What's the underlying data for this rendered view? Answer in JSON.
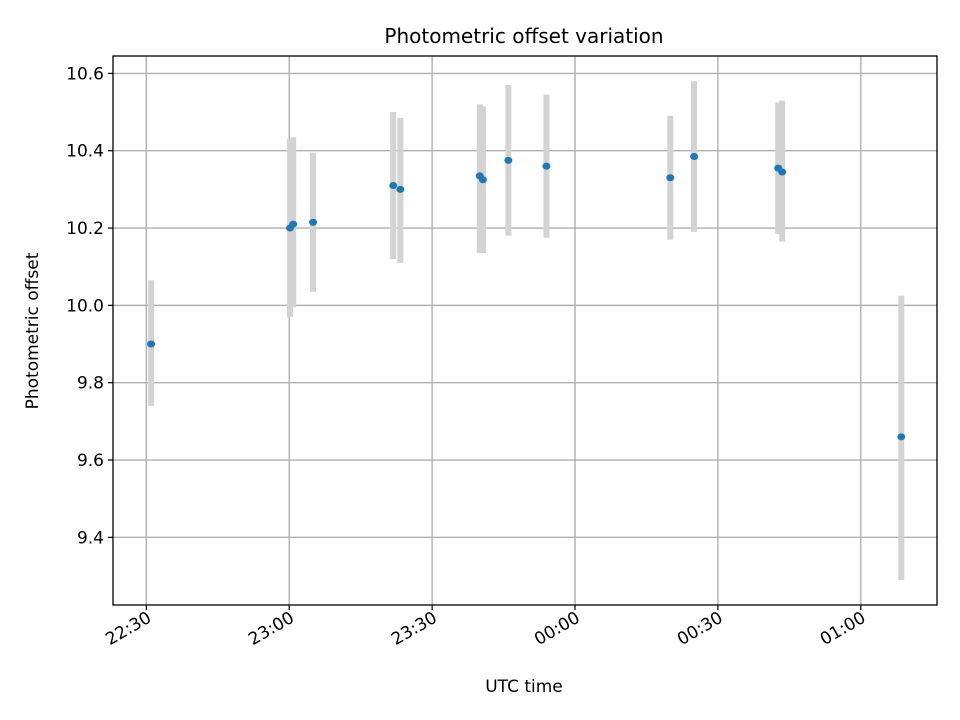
{
  "chart_data": {
    "type": "scatter",
    "title": "Photometric offset variation",
    "xlabel": "UTC time",
    "ylabel": "Photometric offset",
    "grid": true,
    "xlim": [
      "22:23",
      "01:16"
    ],
    "ylim": [
      9.225,
      10.645
    ],
    "x_ticks": [
      "22:30",
      "23:00",
      "23:30",
      "00:00",
      "00:30",
      "01:00"
    ],
    "y_ticks": [
      "9.4",
      "9.6",
      "9.8",
      "10.0",
      "10.2",
      "10.4",
      "10.6"
    ],
    "y_tick_values": [
      9.4,
      9.6,
      9.8,
      10.0,
      10.2,
      10.4,
      10.6
    ],
    "colors": {
      "marker": "#1f77b4",
      "errorbar": "#d3d3d3"
    },
    "points": [
      {
        "t": "22:31:00",
        "y": 9.9,
        "lo": 9.74,
        "hi": 10.065
      },
      {
        "t": "23:00:10",
        "y": 10.2,
        "lo": 9.97,
        "hi": 10.43
      },
      {
        "t": "23:00:50",
        "y": 10.21,
        "lo": 9.995,
        "hi": 10.435
      },
      {
        "t": "23:05:00",
        "y": 10.215,
        "lo": 10.035,
        "hi": 10.395
      },
      {
        "t": "23:21:50",
        "y": 10.31,
        "lo": 10.12,
        "hi": 10.5
      },
      {
        "t": "23:23:20",
        "y": 10.3,
        "lo": 10.11,
        "hi": 10.485
      },
      {
        "t": "23:40:00",
        "y": 10.335,
        "lo": 10.135,
        "hi": 10.52
      },
      {
        "t": "23:40:40",
        "y": 10.325,
        "lo": 10.135,
        "hi": 10.515
      },
      {
        "t": "23:46:00",
        "y": 10.375,
        "lo": 10.18,
        "hi": 10.57
      },
      {
        "t": "23:54:00",
        "y": 10.36,
        "lo": 10.175,
        "hi": 10.545
      },
      {
        "t": "00:20:00",
        "y": 10.33,
        "lo": 10.17,
        "hi": 10.49
      },
      {
        "t": "00:25:00",
        "y": 10.385,
        "lo": 10.19,
        "hi": 10.58
      },
      {
        "t": "00:42:40",
        "y": 10.355,
        "lo": 10.185,
        "hi": 10.525
      },
      {
        "t": "00:43:30",
        "y": 10.345,
        "lo": 10.165,
        "hi": 10.53
      },
      {
        "t": "01:08:30",
        "y": 9.66,
        "lo": 9.29,
        "hi": 10.025
      }
    ]
  }
}
